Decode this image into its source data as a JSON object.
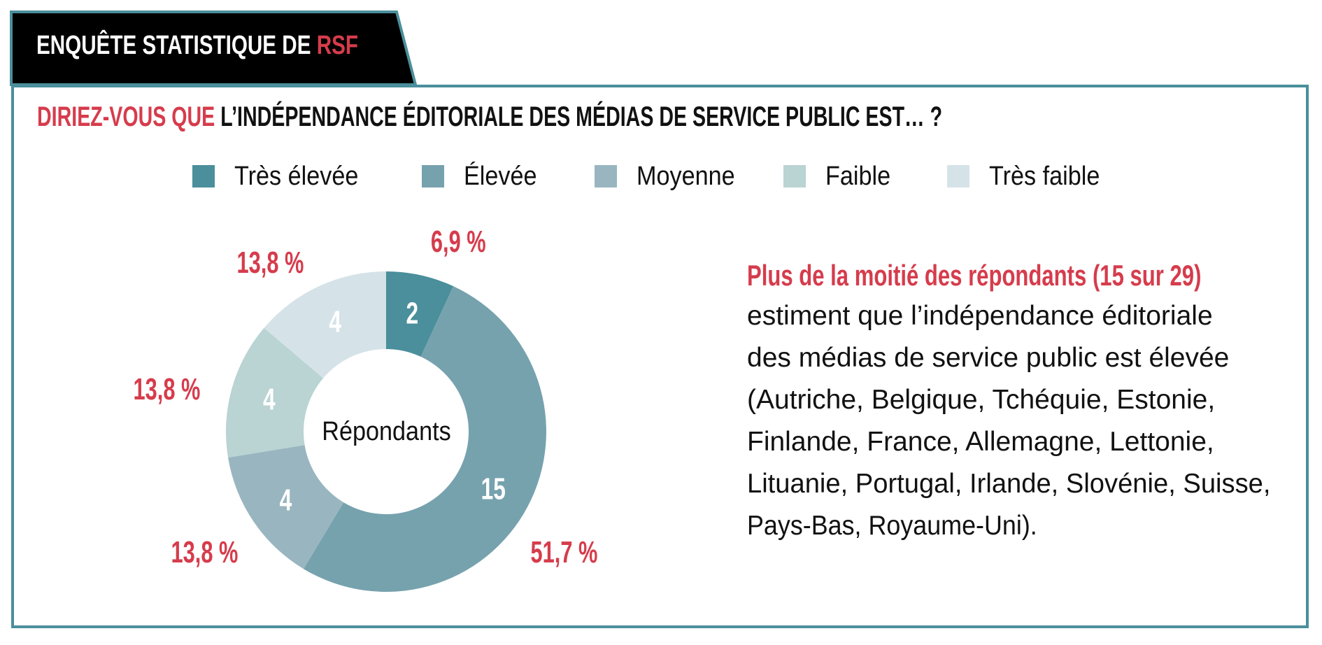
{
  "header": {
    "title_prefix": "ENQUÊTE STATISTIQUE DE ",
    "title_brand": "RSF"
  },
  "question": {
    "lead": "DIRIEZ-VOUS QUE ",
    "rest": "L’INDÉPENDANCE ÉDITORIALE DES MÉDIAS DE SERVICE PUBLIC EST… ?"
  },
  "colors": {
    "accent_red": "#d63c4c",
    "frame_teal": "#4a8f9b",
    "tab_black": "#000000"
  },
  "chart_data": {
    "type": "pie",
    "variant": "donut",
    "title": "Diriez-vous que l’indépendance éditoriale des médias de service public est… ?",
    "center_label": "Répondants",
    "total": 29,
    "legend_position": "top",
    "categories": [
      "Très élevée",
      "Élevée",
      "Moyenne",
      "Faible",
      "Très faible"
    ],
    "values": [
      2,
      15,
      4,
      4,
      4
    ],
    "value_labels": [
      "2",
      "15",
      "4",
      "4",
      "4"
    ],
    "percent_labels": [
      "6,9 %",
      "51,7 %",
      "13,8 %",
      "13,8 %",
      "13,8 %"
    ],
    "percents": [
      6.9,
      51.7,
      13.8,
      13.8,
      13.8
    ],
    "colors": [
      "#4a8f9b",
      "#76a2ae",
      "#99b6c0",
      "#bad3d3",
      "#d5e3e8"
    ]
  },
  "summary": {
    "headline": "Plus de la moitié des répondants (15 sur 29)",
    "lines": [
      "estiment que l’indépendance éditoriale",
      "des médias de service public est élevée",
      "(Autriche, Belgique, Tchéquie, Estonie,",
      "Finlande, France, Allemagne, Lettonie,",
      "Lituanie, Portugal, Irlande, Slovénie, Suisse,",
      "Pays-Bas, Royaume-Uni)."
    ]
  }
}
